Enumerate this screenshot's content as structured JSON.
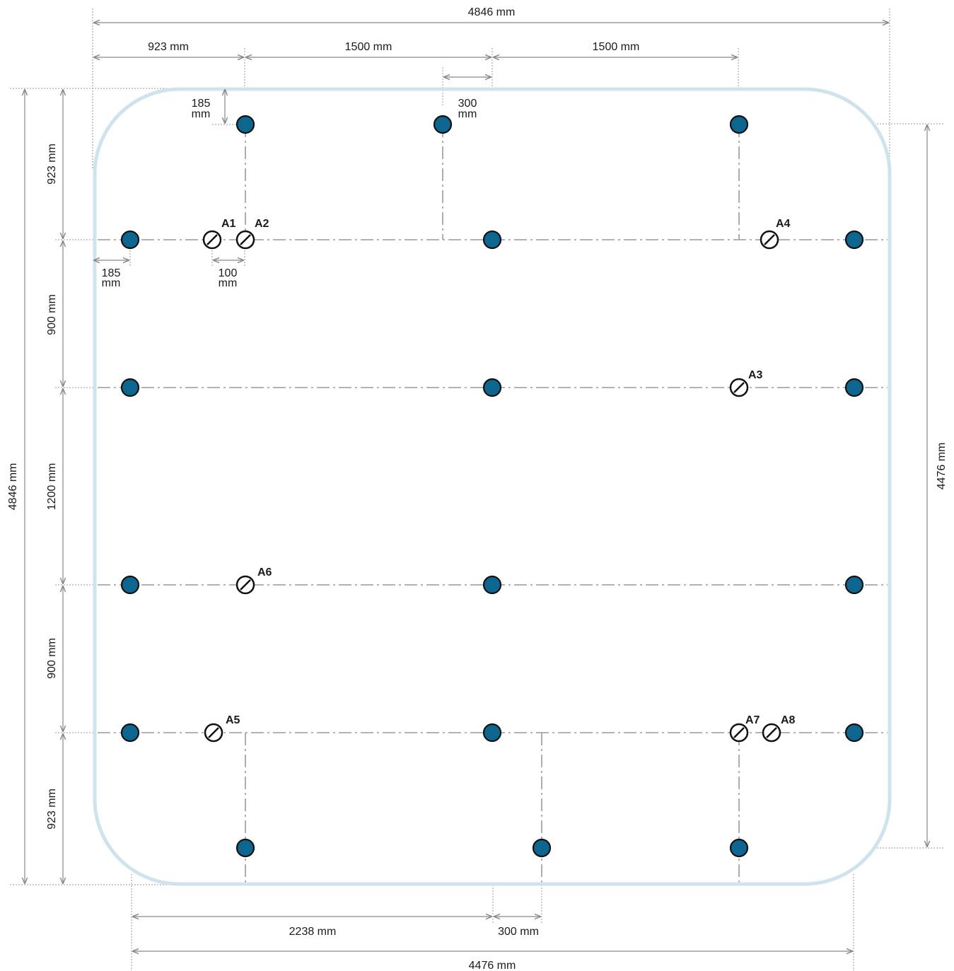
{
  "colors": {
    "outline": "#cfe3ec",
    "hole_fill": "#0d6690",
    "hole_stroke": "#111111",
    "centerline": "#9a9a9a",
    "dimension": "#888888",
    "extension": "#9a9a9a",
    "anchor_stroke": "#111111",
    "text": "#1a1a1a"
  },
  "icons": {
    "hole": "filled-circle",
    "anchor": "circle-with-slash"
  },
  "dimensions": {
    "overall_width": "4846 mm",
    "overall_height": "4846 mm",
    "inner_height": "4476 mm",
    "inner_width": "4476 mm",
    "top_first": "923 mm",
    "top_span_1": "1500 mm",
    "top_span_2": "1500 mm",
    "top_offset_value": "300",
    "top_offset_unit": "mm",
    "hole_inset_value": "185",
    "hole_inset_unit": "mm",
    "side_inset_value": "185",
    "side_inset_unit": "mm",
    "anchor_gap_value": "100",
    "anchor_gap_unit": "mm",
    "left_923_top": "923 mm",
    "left_900_top": "900 mm",
    "left_1200": "1200 mm",
    "left_900_bottom": "900 mm",
    "left_923_bottom": "923 mm",
    "bottom_2238": "2238 mm",
    "bottom_300": "300 mm"
  },
  "anchors": {
    "a1": "A1",
    "a2": "A2",
    "a3": "A3",
    "a4": "A4",
    "a5": "A5",
    "a6": "A6",
    "a7": "A7",
    "a8": "A8"
  }
}
